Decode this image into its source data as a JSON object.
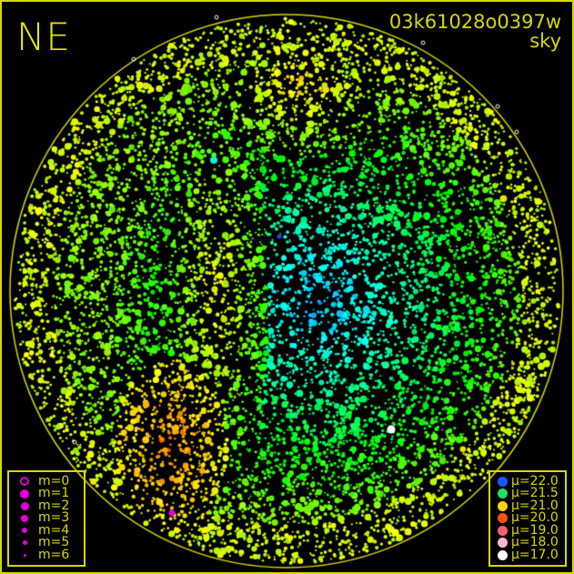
{
  "orientation_label": "NE",
  "image_id": "03k61028o0397w",
  "image_type": "sky",
  "magnitude_legend": [
    {
      "label": "m=0",
      "style": "ring"
    },
    {
      "label": "m=1",
      "style": "filled"
    },
    {
      "label": "m=2",
      "style": "filled"
    },
    {
      "label": "m=3",
      "style": "filled"
    },
    {
      "label": "m=4",
      "style": "filled"
    },
    {
      "label": "m=5",
      "style": "filled"
    },
    {
      "label": "m=6",
      "style": "filled"
    }
  ],
  "magnitude_color": "#e000e0",
  "surface_brightness_legend": [
    {
      "label": "μ=22.0",
      "color": "#1a55ff"
    },
    {
      "label": "μ=21.5",
      "color": "#22dd66"
    },
    {
      "label": "μ=21.0",
      "color": "#ffd400"
    },
    {
      "label": "μ=20.0",
      "color": "#ff5010"
    },
    {
      "label": "μ=19.0",
      "color": "#ff6070"
    },
    {
      "label": "μ=18.0",
      "color": "#ffb8c8"
    },
    {
      "label": "μ=17.0",
      "color": "#ffffff"
    }
  ],
  "accent_color": "#d8d800"
}
